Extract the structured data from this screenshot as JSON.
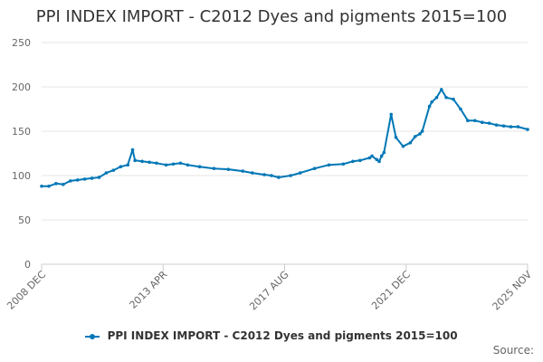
{
  "chart_data": {
    "type": "line",
    "title": "PPI INDEX IMPORT - C2012 Dyes and pigments 2015=100",
    "xlabel": "",
    "ylabel": "",
    "ylim": [
      0,
      250
    ],
    "y_ticks": [
      "0",
      "50",
      "100",
      "150",
      "200",
      "250"
    ],
    "x_tick_labels": [
      "2008 DEC",
      "2013 APR",
      "2017 AUG",
      "2021 DEC",
      "2025 NOV"
    ],
    "grid": true,
    "legend_position": "bottom",
    "series": [
      {
        "name": "PPI INDEX IMPORT - C2012 Dyes and pigments 2015=100",
        "color": "#0077b6",
        "x": [
          "2008-12",
          "2009-03",
          "2009-06",
          "2009-09",
          "2009-12",
          "2010-03",
          "2010-06",
          "2010-09",
          "2010-12",
          "2011-03",
          "2011-06",
          "2011-09",
          "2011-12",
          "2012-02",
          "2012-03",
          "2012-06",
          "2012-09",
          "2012-12",
          "2013-04",
          "2013-07",
          "2013-10",
          "2014-01",
          "2014-06",
          "2014-12",
          "2015-06",
          "2015-12",
          "2016-04",
          "2016-09",
          "2016-12",
          "2017-03",
          "2017-08",
          "2017-12",
          "2018-06",
          "2018-12",
          "2019-06",
          "2019-10",
          "2020-01",
          "2020-05",
          "2020-06",
          "2020-08",
          "2020-09",
          "2020-10",
          "2020-11",
          "2021-02",
          "2021-04",
          "2021-07",
          "2021-10",
          "2021-12",
          "2022-02",
          "2022-03",
          "2022-06",
          "2022-07",
          "2022-09",
          "2022-11",
          "2023-01",
          "2023-04",
          "2023-07",
          "2023-10",
          "2024-01",
          "2024-04",
          "2024-07",
          "2024-10",
          "2025-01",
          "2025-04",
          "2025-07",
          "2025-11"
        ],
        "values": [
          88,
          88,
          91,
          90,
          94,
          95,
          96,
          97,
          98,
          103,
          106,
          110,
          112,
          129,
          117,
          116,
          115,
          114,
          112,
          113,
          114,
          112,
          110,
          108,
          107,
          105,
          103,
          101,
          100,
          98,
          100,
          103,
          108,
          112,
          113,
          116,
          117,
          120,
          122,
          118,
          116,
          122,
          126,
          169,
          143,
          133,
          137,
          144,
          147,
          150,
          178,
          183,
          188,
          197,
          188,
          186,
          175,
          162,
          162,
          160,
          159,
          157,
          156,
          155,
          155,
          152
        ]
      }
    ]
  },
  "legend": {
    "label": "PPI INDEX IMPORT - C2012 Dyes and pigments 2015=100"
  },
  "source": {
    "label": "Source:"
  }
}
